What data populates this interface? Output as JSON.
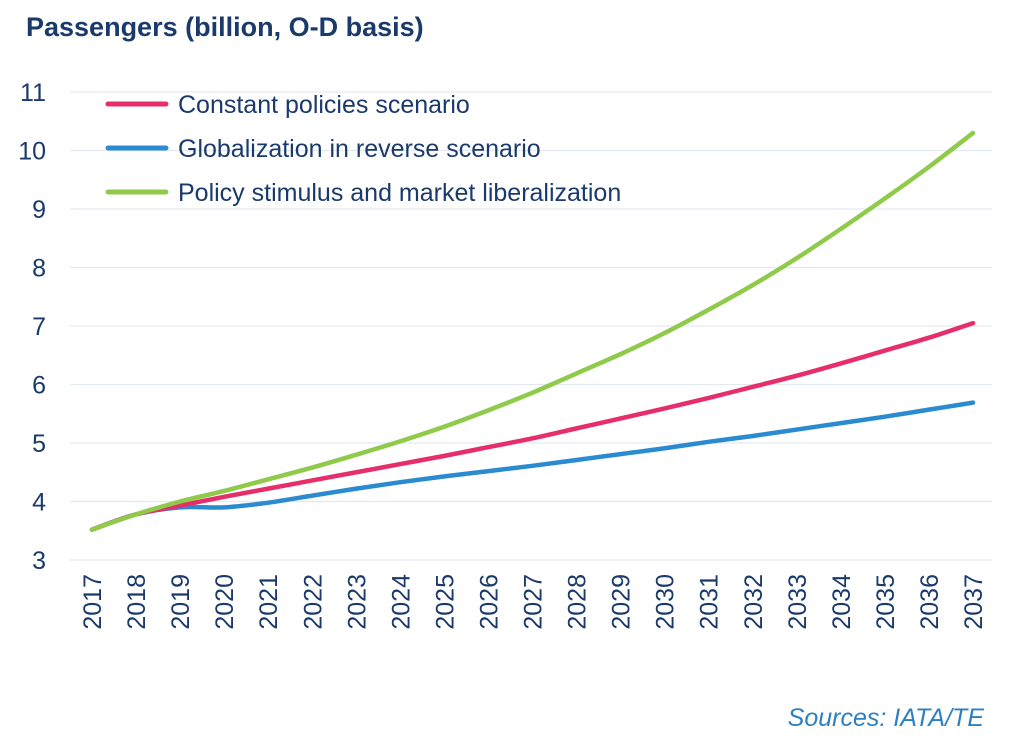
{
  "chart_data": {
    "type": "line",
    "title": "Passengers (billion, O-D basis)",
    "source": "Sources: IATA/TE",
    "xlabel": "",
    "ylabel": "",
    "x": [
      2017,
      2018,
      2019,
      2020,
      2021,
      2022,
      2023,
      2024,
      2025,
      2026,
      2027,
      2028,
      2029,
      2030,
      2031,
      2032,
      2033,
      2034,
      2035,
      2036,
      2037
    ],
    "ylim": [
      3,
      11
    ],
    "yticks": [
      3,
      4,
      5,
      6,
      7,
      8,
      9,
      10,
      11
    ],
    "grid": true,
    "legend_position": "top-left",
    "series": [
      {
        "name": "Constant policies scenario",
        "color": "#e62e6b",
        "values": [
          3.52,
          3.78,
          3.93,
          4.08,
          4.22,
          4.36,
          4.5,
          4.64,
          4.78,
          4.93,
          5.08,
          5.25,
          5.42,
          5.59,
          5.77,
          5.96,
          6.15,
          6.36,
          6.58,
          6.8,
          7.05
        ]
      },
      {
        "name": "Globalization in reverse scenario",
        "color": "#2b8bd0",
        "values": [
          3.52,
          3.78,
          3.9,
          3.9,
          3.98,
          4.1,
          4.22,
          4.33,
          4.43,
          4.52,
          4.61,
          4.71,
          4.81,
          4.91,
          5.02,
          5.12,
          5.23,
          5.34,
          5.45,
          5.57,
          5.69
        ]
      },
      {
        "name": "Policy stimulus and market liberalization",
        "color": "#8fca4a",
        "values": [
          3.52,
          3.78,
          4.0,
          4.18,
          4.38,
          4.58,
          4.8,
          5.03,
          5.28,
          5.56,
          5.86,
          6.19,
          6.52,
          6.88,
          7.28,
          7.7,
          8.16,
          8.66,
          9.18,
          9.72,
          10.3
        ]
      }
    ]
  }
}
